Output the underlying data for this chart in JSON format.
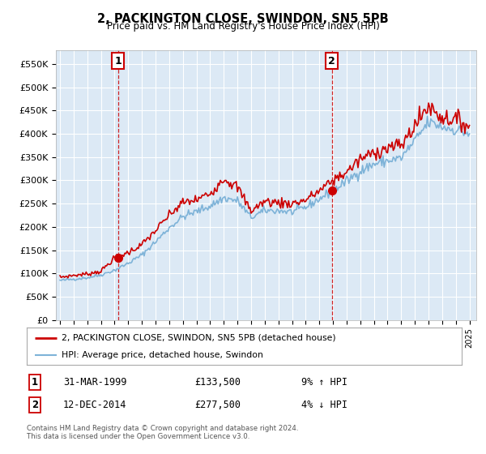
{
  "title": "2, PACKINGTON CLOSE, SWINDON, SN5 5PB",
  "subtitle": "Price paid vs. HM Land Registry's House Price Index (HPI)",
  "legend_entries": [
    "2, PACKINGTON CLOSE, SWINDON, SN5 5PB (detached house)",
    "HPI: Average price, detached house, Swindon"
  ],
  "line1_color": "#cc0000",
  "line2_color": "#7eb3d8",
  "background_color": "#dce9f5",
  "grid_color": "#ffffff",
  "ann1_x": 1999.25,
  "ann1_y": 133500,
  "ann2_x": 2014.92,
  "ann2_y": 277500,
  "table_rows": [
    {
      "num": "1",
      "date": "31-MAR-1999",
      "price": "£133,500",
      "hpi": "9% ↑ HPI"
    },
    {
      "num": "2",
      "date": "12-DEC-2014",
      "price": "£277,500",
      "hpi": "4% ↓ HPI"
    }
  ],
  "footer": "Contains HM Land Registry data © Crown copyright and database right 2024.\nThis data is licensed under the Open Government Licence v3.0.",
  "ylim": [
    0,
    580000
  ],
  "yticks": [
    0,
    50000,
    100000,
    150000,
    200000,
    250000,
    300000,
    350000,
    400000,
    450000,
    500000,
    550000
  ],
  "ytick_labels": [
    "£0",
    "£50K",
    "£100K",
    "£150K",
    "£200K",
    "£250K",
    "£300K",
    "£350K",
    "£400K",
    "£450K",
    "£500K",
    "£550K"
  ],
  "xlim_start": 1994.7,
  "xlim_end": 2025.5
}
